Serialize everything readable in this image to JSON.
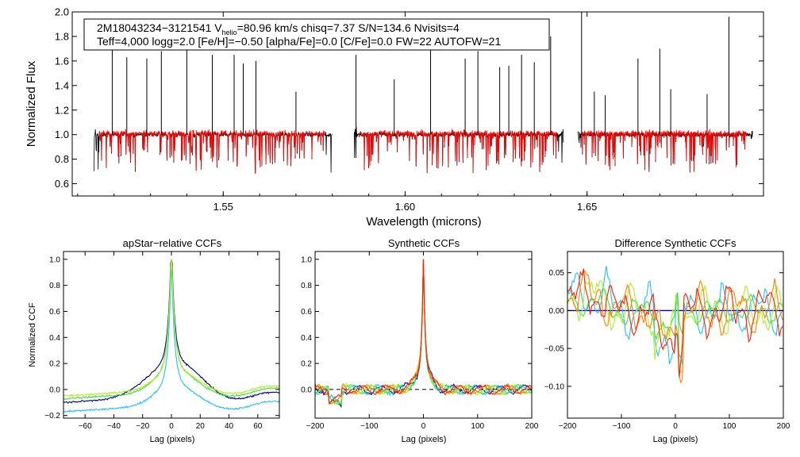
{
  "header": {
    "line1_prefix": "2M18043234−3121541  V",
    "line1_sub": "helio",
    "line1_suffix": "=80.96 km/s  chisq=7.37  S/N=134.6  Nvisits=4",
    "line2": "Teff=4,000 logg=2.0 [Fe/H]=−0.50 [alpha/Fe]=0.0 [C/Fe]=0.0 FW=22 AUTOFW=21"
  },
  "chart_data": [
    {
      "id": "spectrum",
      "type": "line",
      "title": "",
      "xlabel": "Wavelength (microns)",
      "ylabel": "Normalized Flux",
      "xlim": [
        1.5085,
        1.6985
      ],
      "ylim": [
        0.5,
        2.0
      ],
      "xticks": [
        1.55,
        1.6,
        1.65
      ],
      "xtick_labels": [
        "1.55",
        "1.60",
        "1.65"
      ],
      "yticks": [
        0.6,
        0.8,
        1.0,
        1.2,
        1.4,
        1.6,
        1.8,
        2.0
      ],
      "ytick_labels": [
        "0.6",
        "0.8",
        "1.0",
        "1.2",
        "1.4",
        "1.6",
        "1.8",
        "2.0"
      ],
      "chips": [
        [
          1.5145,
          1.58
        ],
        [
          1.586,
          1.6435
        ],
        [
          1.6475,
          1.6955
        ]
      ],
      "series": [
        {
          "name": "observed",
          "color": "#000000"
        },
        {
          "name": "model",
          "color": "#ff0000"
        }
      ],
      "sky_lines": [
        [
          1.5195,
          1.74
        ],
        [
          1.5235,
          1.63
        ],
        [
          1.529,
          1.62
        ],
        [
          1.533,
          1.68
        ],
        [
          1.54,
          1.71
        ],
        [
          1.547,
          1.65
        ],
        [
          1.553,
          1.65
        ],
        [
          1.5555,
          1.58
        ],
        [
          1.559,
          1.6
        ],
        [
          1.57,
          1.35
        ],
        [
          1.5865,
          1.65
        ],
        [
          1.597,
          1.45
        ],
        [
          1.607,
          1.88
        ],
        [
          1.6165,
          1.62
        ],
        [
          1.62,
          1.68
        ],
        [
          1.626,
          1.55
        ],
        [
          1.6285,
          1.56
        ],
        [
          1.632,
          1.65
        ],
        [
          1.6355,
          1.59
        ],
        [
          1.64,
          1.8
        ],
        [
          1.6485,
          2.0
        ],
        [
          1.652,
          1.35
        ],
        [
          1.655,
          1.32
        ],
        [
          1.664,
          1.62
        ],
        [
          1.67,
          1.7
        ],
        [
          1.673,
          1.37
        ],
        [
          1.683,
          1.33
        ],
        [
          1.689,
          1.96
        ]
      ]
    },
    {
      "id": "apstar_ccf",
      "type": "line",
      "title": "apStar−relative CCFs",
      "xlabel": "Lag (pixels)",
      "ylabel": "Normalized CCF",
      "xlim": [
        -75,
        75
      ],
      "ylim": [
        -0.22,
        1.06
      ],
      "xticks": [
        -60,
        -40,
        -20,
        0,
        20,
        40,
        60
      ],
      "xtick_labels": [
        "−60",
        "−40",
        "−20",
        "0",
        "20",
        "40",
        "60"
      ],
      "yticks": [
        -0.2,
        0.0,
        0.2,
        0.4,
        0.6,
        0.8,
        1.0
      ],
      "ytick_labels": [
        "−0.2",
        "0.0",
        "0.2",
        "0.4",
        "0.6",
        "0.8",
        "1.0"
      ],
      "series": [
        {
          "name": "visit1",
          "color": "#000080",
          "wing": 0.25,
          "peak": 0.97,
          "base": -0.05,
          "width": 10
        },
        {
          "name": "visit2",
          "color": "#20c0ff",
          "wing": 0.15,
          "peak": 0.97,
          "base": -0.12,
          "width": 7
        },
        {
          "name": "visit3",
          "color": "#40e040",
          "wing": 0.17,
          "peak": 0.98,
          "base": -0.02,
          "width": 7
        },
        {
          "name": "visit4",
          "color": "#b0f020",
          "wing": 0.14,
          "peak": 0.96,
          "base": 0.0,
          "width": 7
        }
      ]
    },
    {
      "id": "synthetic_ccf",
      "type": "line",
      "title": "Synthetic CCFs",
      "xlabel": "Lag (pixels)",
      "ylabel": "",
      "xlim": [
        -200,
        200
      ],
      "ylim": [
        -0.22,
        1.06
      ],
      "xticks": [
        -200,
        -100,
        0,
        100,
        200
      ],
      "xtick_labels": [
        "−200",
        "−100",
        "0",
        "100",
        "200"
      ],
      "yticks": [
        0.0,
        0.2,
        0.4,
        0.6,
        0.8,
        1.0
      ],
      "ytick_labels": [
        "0.0",
        "0.2",
        "0.4",
        "0.6",
        "0.8",
        "1.0"
      ],
      "zero_line": true,
      "series": [
        {
          "name": "template",
          "color": "#000080"
        },
        {
          "name": "visit1",
          "color": "#20c0ff"
        },
        {
          "name": "visit2",
          "color": "#40e040"
        },
        {
          "name": "visit3",
          "color": "#b0f020"
        },
        {
          "name": "visit4",
          "color": "#ff8000"
        },
        {
          "name": "visit5",
          "color": "#ff2000"
        }
      ]
    },
    {
      "id": "diff_ccf",
      "type": "line",
      "title": "Difference Synthetic CCFs",
      "xlabel": "Lag (pixels)",
      "ylabel": "",
      "xlim": [
        -200,
        200
      ],
      "ylim": [
        -0.142,
        0.078
      ],
      "xticks": [
        -200,
        -100,
        0,
        100,
        200
      ],
      "xtick_labels": [
        "−200",
        "−100",
        "0",
        "100",
        "200"
      ],
      "yticks": [
        -0.1,
        -0.05,
        0.0,
        0.05
      ],
      "ytick_labels": [
        "−0.10",
        "−0.05",
        "0.00",
        "0.05"
      ],
      "zero_line": true,
      "series": [
        {
          "name": "visit1",
          "color": "#20c0ff"
        },
        {
          "name": "visit2",
          "color": "#40e040"
        },
        {
          "name": "visit3",
          "color": "#b0f020"
        },
        {
          "name": "visit4",
          "color": "#ff8000"
        },
        {
          "name": "visit5",
          "color": "#ff2000"
        }
      ]
    }
  ]
}
